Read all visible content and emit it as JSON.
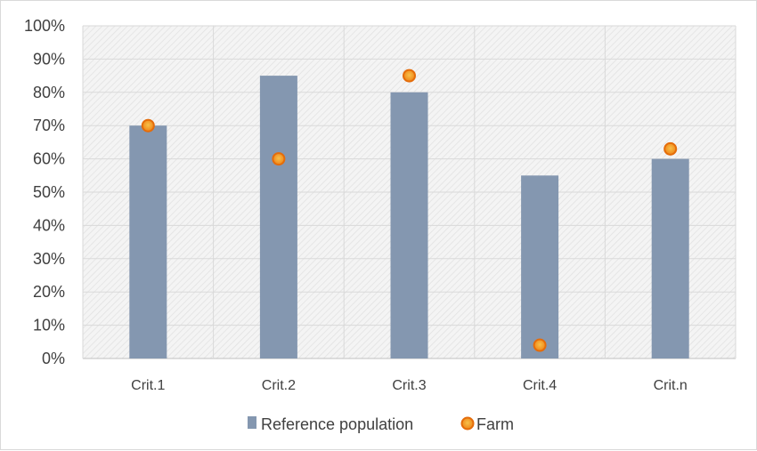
{
  "chart_data": {
    "type": "bar",
    "categories": [
      "Crit.1",
      "Crit.2",
      "Crit.3",
      "Crit.4",
      "Crit.n"
    ],
    "series": [
      {
        "name": "Reference population",
        "type": "bar",
        "values": [
          70,
          85,
          80,
          55,
          60
        ],
        "color": "#8497b0"
      },
      {
        "name": "Farm",
        "type": "scatter",
        "values": [
          70,
          60,
          85,
          4,
          63
        ],
        "color": "#f5a623",
        "edge_color": "#e46c0a"
      }
    ],
    "title": "",
    "xlabel": "",
    "ylabel": "",
    "ylim": [
      0,
      100
    ],
    "y_ticks": [
      "0%",
      "10%",
      "20%",
      "30%",
      "40%",
      "50%",
      "60%",
      "70%",
      "80%",
      "90%",
      "100%"
    ],
    "grid": true,
    "legend": {
      "position": "bottom",
      "entries": [
        "Reference population",
        "Farm"
      ]
    },
    "plot_background": "hatched-gray"
  }
}
